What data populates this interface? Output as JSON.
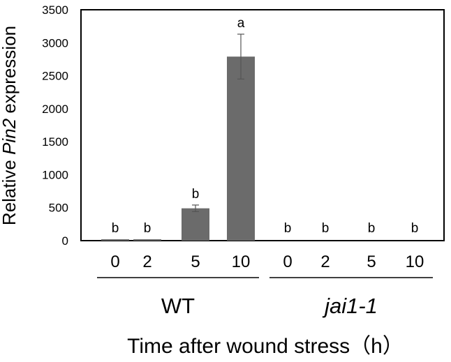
{
  "chart_data": {
    "type": "bar",
    "ylabel_parts": [
      {
        "text": "Relative ",
        "italic": false
      },
      {
        "text": "Pin2",
        "italic": true
      },
      {
        "text": " expression",
        "italic": false
      }
    ],
    "xlabel": "Time after wound stress（h）",
    "ylim": [
      0,
      3500
    ],
    "yticks": [
      "0",
      "500",
      "1000",
      "1500",
      "2000",
      "2500",
      "3000",
      "3500"
    ],
    "grid": false,
    "bar_color": "#6b6b6b",
    "groups": [
      {
        "name": "WT",
        "italic": false,
        "categories": [
          "0",
          "2",
          "5",
          "10"
        ],
        "values": [
          2,
          10,
          490,
          2790
        ],
        "errors": [
          0,
          0,
          50,
          340
        ],
        "letters": [
          "b",
          "b",
          "b",
          "a"
        ]
      },
      {
        "name": "jai1-1",
        "italic": true,
        "categories": [
          "0",
          "2",
          "5",
          "10"
        ],
        "values": [
          0,
          0,
          0,
          0
        ],
        "errors": [
          0,
          0,
          0,
          0
        ],
        "letters": [
          "b",
          "b",
          "b",
          "b"
        ]
      }
    ]
  }
}
